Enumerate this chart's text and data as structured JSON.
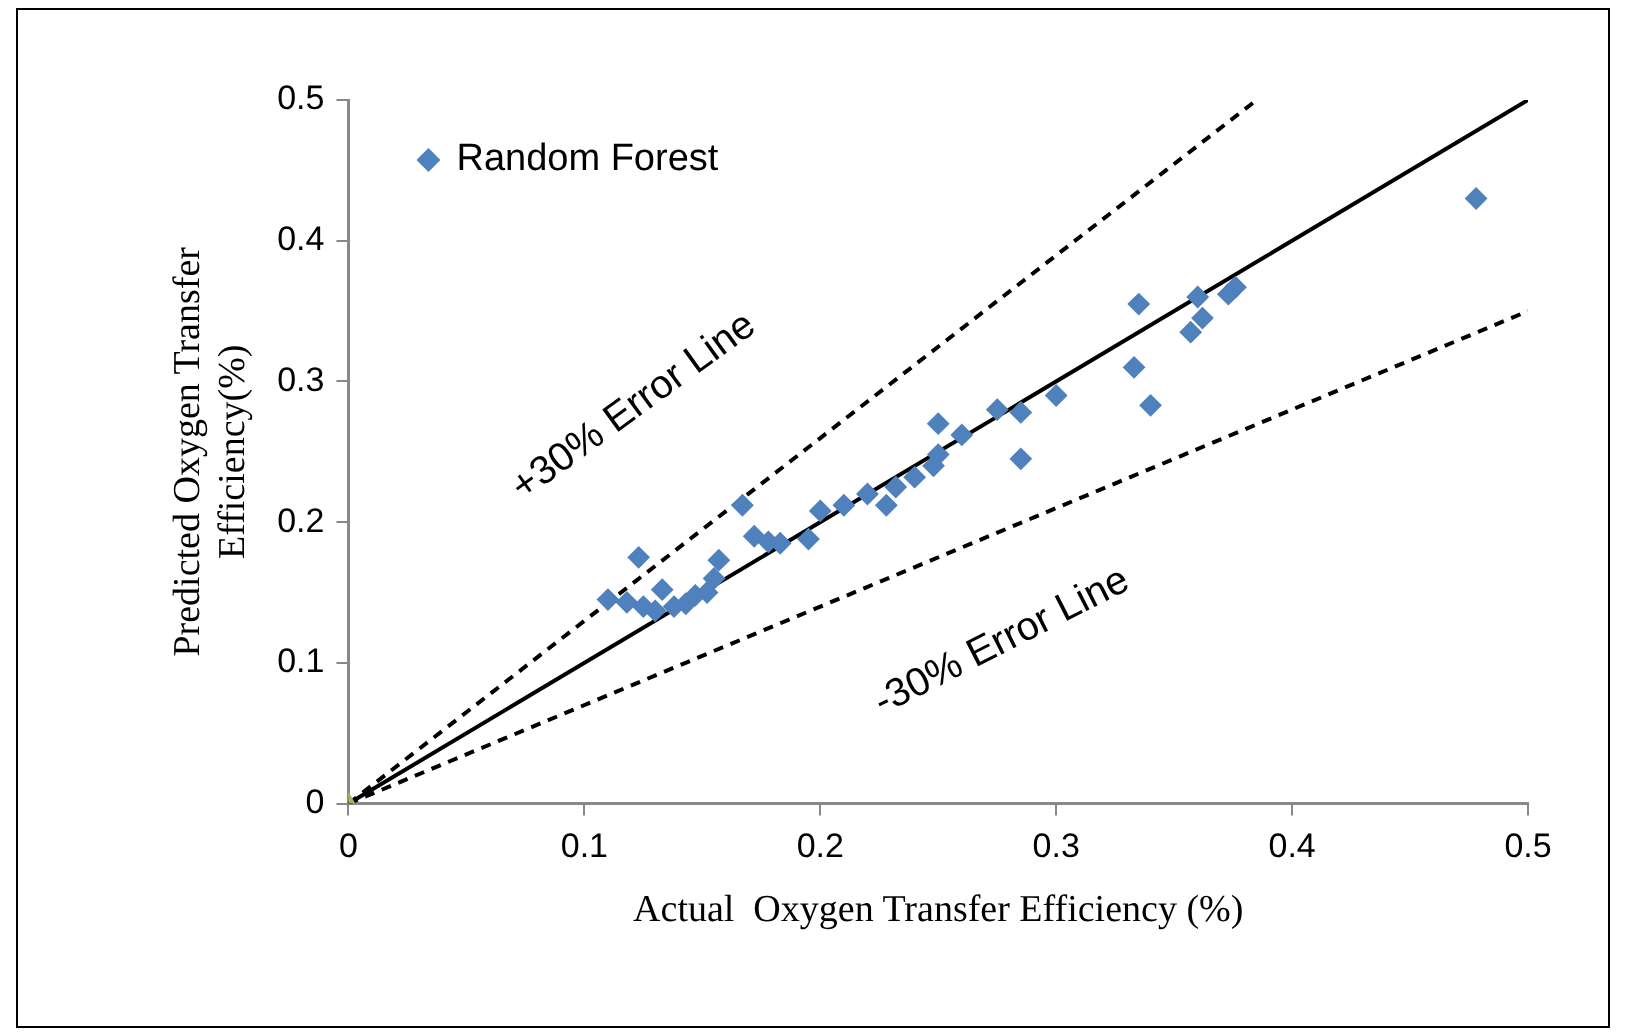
{
  "chart_data": {
    "type": "scatter",
    "xlabel": "Actual  Oxygen Transfer Efficiency (%)",
    "ylabel": "Predicted Oxygen Transfer Efficiency(%)",
    "xlim": [
      0,
      0.5
    ],
    "ylim": [
      0,
      0.5
    ],
    "xticks": [
      0,
      0.1,
      0.2,
      0.3,
      0.4,
      0.5
    ],
    "yticks": [
      0,
      0.1,
      0.2,
      0.3,
      0.4,
      0.5
    ],
    "grid": false,
    "legend": "top left",
    "marker": "diamond",
    "series": [
      {
        "name": "Random Forest",
        "color": "#4f81bd",
        "x": [
          0.11,
          0.118,
          0.123,
          0.125,
          0.13,
          0.133,
          0.138,
          0.143,
          0.147,
          0.152,
          0.155,
          0.157,
          0.167,
          0.172,
          0.178,
          0.183,
          0.195,
          0.2,
          0.21,
          0.22,
          0.228,
          0.232,
          0.24,
          0.248,
          0.25,
          0.25,
          0.26,
          0.275,
          0.285,
          0.285,
          0.3,
          0.333,
          0.335,
          0.34,
          0.357,
          0.36,
          0.362,
          0.373,
          0.376,
          0.478
        ],
        "values": [
          0.145,
          0.143,
          0.175,
          0.14,
          0.137,
          0.152,
          0.14,
          0.142,
          0.148,
          0.15,
          0.16,
          0.173,
          0.212,
          0.19,
          0.186,
          0.185,
          0.188,
          0.208,
          0.212,
          0.22,
          0.212,
          0.225,
          0.232,
          0.24,
          0.27,
          0.248,
          0.262,
          0.28,
          0.278,
          0.245,
          0.29,
          0.31,
          0.355,
          0.283,
          0.335,
          0.36,
          0.345,
          0.362,
          0.367,
          0.43
        ]
      },
      {
        "type": "scatter",
        "color": "#9bbb59",
        "marker": "triangle",
        "x": [
          0
        ],
        "values": [
          0
        ]
      },
      {
        "type": "line",
        "color": "#000000",
        "line_style": "solid",
        "marker": "none",
        "x": [
          0,
          0.5
        ],
        "values": [
          0,
          0.5
        ]
      },
      {
        "type": "line",
        "color": "#000000",
        "line_style": "dashed",
        "marker": "none",
        "x": [
          0,
          0.385
        ],
        "values": [
          0,
          0.5
        ]
      },
      {
        "type": "line",
        "color": "#000000",
        "line_style": "dashed",
        "marker": "none",
        "x": [
          0,
          0.5
        ],
        "values": [
          0,
          0.35
        ]
      }
    ],
    "annotations": [
      "+30% Error Line",
      "-30% Error Line"
    ]
  }
}
